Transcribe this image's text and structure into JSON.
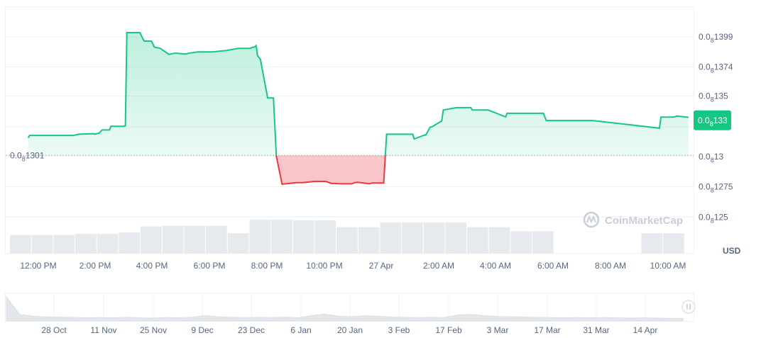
{
  "currency_label": "USD",
  "watermark": "CoinMarketCap",
  "colors": {
    "up": "#16c784",
    "down": "#ea3943",
    "grid": "#eff2f5",
    "volume": "#e6e9ee",
    "badge": "#16c784"
  },
  "chart_data": {
    "type": "line",
    "title": "",
    "xlabel": "",
    "ylabel": "",
    "y_axis_side": "right",
    "yticks": [
      {
        "value": 1.399e-10,
        "label_prefix": "0.0",
        "label_sub": "8",
        "label_rest": "1399"
      },
      {
        "value": 1.374e-10,
        "label_prefix": "0.0",
        "label_sub": "8",
        "label_rest": "1374"
      },
      {
        "value": 1.35e-10,
        "label_prefix": "0.0",
        "label_sub": "8",
        "label_rest": "135"
      },
      {
        "value": 1.3e-10,
        "label_prefix": "0.0",
        "label_sub": "8",
        "label_rest": "13"
      },
      {
        "value": 1.275e-10,
        "label_prefix": "0.0",
        "label_sub": "8",
        "label_rest": "1275"
      },
      {
        "value": 1.25e-10,
        "label_prefix": "0.0",
        "label_sub": "8",
        "label_rest": "125"
      }
    ],
    "baseline": {
      "value": 1.301e-10,
      "label_prefix": "0.0",
      "label_sub": "8",
      "label_rest": "1301"
    },
    "current_price": {
      "value": 1.33e-10,
      "label_prefix": "0.0",
      "label_sub": "8",
      "label_rest": "133"
    },
    "xticks": [
      "12:00 PM",
      "2:00 PM",
      "4:00 PM",
      "6:00 PM",
      "8:00 PM",
      "10:00 PM",
      "27 Apr",
      "2:00 AM",
      "4:00 AM",
      "6:00 AM",
      "8:00 AM",
      "10:00 AM"
    ],
    "series": [
      {
        "x_hours": [
          11.75,
          11.8,
          13.3,
          13.5,
          14.0,
          14.05,
          14.2,
          14.3,
          14.55,
          14.6,
          15.0,
          15.1,
          15.15,
          15.6,
          15.7,
          15.75,
          16.0,
          16.1,
          16.3,
          16.6,
          16.8,
          17.2,
          17.3,
          17.6,
          18.1,
          18.6,
          19.0,
          19.4,
          19.5,
          19.55,
          19.6,
          19.62,
          19.65,
          19.75,
          20.0,
          20.2,
          20.3,
          20.5,
          21.0,
          21.2,
          21.5,
          21.6,
          21.7,
          22.0,
          22.2,
          22.3,
          22.5,
          22.9,
          23.0,
          23.1,
          23.5,
          23.6,
          23.9,
          24.0,
          24.1,
          25.0,
          25.05,
          25.4,
          25.45,
          25.6,
          25.65,
          26.0,
          26.05,
          26.5,
          27.0,
          27.05,
          27.6,
          28.2,
          28.25,
          29.5,
          29.6,
          31.2,
          33.5,
          33.55,
          34.0,
          34.1,
          34.5
        ],
        "y_e10": [
          1.3155,
          1.3175,
          1.3175,
          1.3185,
          1.319,
          1.3185,
          1.3195,
          1.322,
          1.322,
          1.325,
          1.325,
          1.3255,
          1.4025,
          1.4025,
          1.3975,
          1.3955,
          1.3955,
          1.3905,
          1.3895,
          1.3845,
          1.3855,
          1.3848,
          1.3855,
          1.3865,
          1.3865,
          1.3878,
          1.3895,
          1.3895,
          1.3905,
          1.3905,
          1.3918,
          1.3895,
          1.3835,
          1.3805,
          1.3485,
          1.3485,
          1.3002,
          1.2772,
          1.2785,
          1.2785,
          1.2792,
          1.2795,
          1.2795,
          1.2795,
          1.2778,
          1.2778,
          1.2775,
          1.2775,
          1.2785,
          1.2788,
          1.2775,
          1.2782,
          1.2782,
          1.2782,
          1.3185,
          1.3185,
          1.3145,
          1.3178,
          1.3178,
          1.3245,
          1.3245,
          1.3295,
          1.3385,
          1.3405,
          1.3405,
          1.3385,
          1.3385,
          1.3328,
          1.3358,
          1.3358,
          1.3298,
          1.3298,
          1.3235,
          1.3326,
          1.3326,
          1.3335,
          1.3325
        ]
      }
    ],
    "volume": {
      "x_hours": [
        11.5,
        12.25,
        13.0,
        13.75,
        14.5,
        15.25,
        16.0,
        16.75,
        17.5,
        18.25,
        19.0,
        19.75,
        20.5,
        21.25,
        22.0,
        22.75,
        23.5,
        24.25,
        25.0,
        25.75,
        26.5,
        27.25,
        28.0,
        28.75,
        29.5,
        30.25,
        31.0,
        31.75,
        32.5,
        33.25,
        34.0
      ],
      "values": [
        0.55,
        0.55,
        0.55,
        0.58,
        0.58,
        0.62,
        0.8,
        0.82,
        0.82,
        0.82,
        0.6,
        1.0,
        1.0,
        0.98,
        0.98,
        0.78,
        0.78,
        0.92,
        0.92,
        0.92,
        0.92,
        0.78,
        0.78,
        0.66,
        0.66,
        0.0,
        0.0,
        0.0,
        0.0,
        0.6,
        0.6
      ]
    },
    "navigator": {
      "xticks": [
        "28 Oct",
        "11 Nov",
        "25 Nov",
        "9 Dec",
        "23 Dec",
        "6 Jan",
        "20 Jan",
        "3 Feb",
        "17 Feb",
        "3 Mar",
        "17 Mar",
        "31 Mar",
        "14 Apr"
      ],
      "values": [
        0.9,
        0.25,
        0.18,
        0.15,
        0.15,
        0.14,
        0.12,
        0.13,
        0.12,
        0.14,
        0.12,
        0.11,
        0.13,
        0.12,
        0.14,
        0.2,
        0.16,
        0.14,
        0.13,
        0.14,
        0.13,
        0.15,
        0.12,
        0.2,
        0.26,
        0.18,
        0.16,
        0.2,
        0.18,
        0.15,
        0.14,
        0.13,
        0.14,
        0.13,
        0.22,
        0.25,
        0.2,
        0.17,
        0.16,
        0.15,
        0.14,
        0.13,
        0.12,
        0.13,
        0.12,
        0.13,
        0.12,
        0.11,
        0.12,
        0.11,
        0.1,
        0.1
      ]
    }
  }
}
